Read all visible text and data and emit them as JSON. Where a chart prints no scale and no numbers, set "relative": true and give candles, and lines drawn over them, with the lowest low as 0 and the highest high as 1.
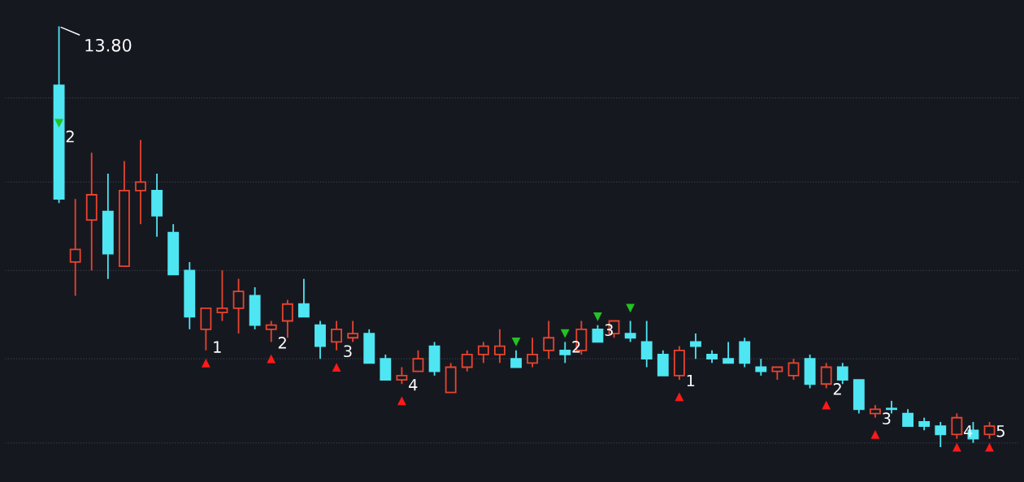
{
  "chart_data": {
    "type": "candlestick",
    "relative": true,
    "marker": "triangle",
    "categories": [
      null,
      null,
      null,
      null,
      null,
      null,
      null,
      null,
      null,
      null,
      null,
      null,
      null,
      null,
      null,
      null,
      null,
      null,
      null,
      null,
      null,
      null,
      null,
      null,
      null,
      null,
      null,
      null,
      null,
      null,
      null,
      null,
      null,
      null,
      null,
      null,
      null,
      null,
      null,
      null,
      null,
      null,
      null,
      null,
      null,
      null,
      null,
      null,
      null,
      null,
      null,
      null,
      null,
      null,
      null,
      null,
      null,
      null
    ],
    "ohlc": [
      [
        0.86,
        1.0,
        0.58,
        0.59
      ],
      [
        0.44,
        0.59,
        0.36,
        0.47
      ],
      [
        0.54,
        0.7,
        0.42,
        0.6
      ],
      [
        0.56,
        0.65,
        0.4,
        0.46
      ],
      [
        0.43,
        0.68,
        0.43,
        0.61
      ],
      [
        0.61,
        0.73,
        0.53,
        0.63
      ],
      [
        0.61,
        0.65,
        0.5,
        0.55
      ],
      [
        0.51,
        0.53,
        0.41,
        0.41
      ],
      [
        0.42,
        0.44,
        0.28,
        0.31
      ],
      [
        0.28,
        0.33,
        0.23,
        0.33
      ],
      [
        0.32,
        0.42,
        0.3,
        0.33
      ],
      [
        0.33,
        0.4,
        0.27,
        0.37
      ],
      [
        0.36,
        0.38,
        0.28,
        0.29
      ],
      [
        0.28,
        0.3,
        0.25,
        0.29
      ],
      [
        0.3,
        0.35,
        0.26,
        0.34
      ],
      [
        0.34,
        0.4,
        0.31,
        0.31
      ],
      [
        0.29,
        0.3,
        0.21,
        0.24
      ],
      [
        0.25,
        0.3,
        0.23,
        0.28
      ],
      [
        0.26,
        0.3,
        0.25,
        0.27
      ],
      [
        0.27,
        0.28,
        0.2,
        0.2
      ],
      [
        0.21,
        0.22,
        0.16,
        0.16
      ],
      [
        0.16,
        0.19,
        0.15,
        0.17
      ],
      [
        0.18,
        0.23,
        0.18,
        0.21
      ],
      [
        0.24,
        0.25,
        0.17,
        0.18
      ],
      [
        0.13,
        0.2,
        0.13,
        0.19
      ],
      [
        0.19,
        0.23,
        0.18,
        0.22
      ],
      [
        0.22,
        0.25,
        0.2,
        0.24
      ],
      [
        0.22,
        0.28,
        0.2,
        0.24
      ],
      [
        0.21,
        0.23,
        0.19,
        0.19
      ],
      [
        0.2,
        0.26,
        0.19,
        0.22
      ],
      [
        0.23,
        0.3,
        0.21,
        0.26
      ],
      [
        0.23,
        0.25,
        0.2,
        0.22
      ],
      [
        0.23,
        0.3,
        0.22,
        0.28
      ],
      [
        0.28,
        0.29,
        0.25,
        0.25
      ],
      [
        0.27,
        0.3,
        0.26,
        0.3
      ],
      [
        0.27,
        0.3,
        0.25,
        0.26
      ],
      [
        0.25,
        0.3,
        0.19,
        0.21
      ],
      [
        0.22,
        0.23,
        0.17,
        0.17
      ],
      [
        0.17,
        0.24,
        0.16,
        0.23
      ],
      [
        0.25,
        0.27,
        0.21,
        0.24
      ],
      [
        0.22,
        0.23,
        0.2,
        0.21
      ],
      [
        0.21,
        0.25,
        0.2,
        0.2
      ],
      [
        0.25,
        0.26,
        0.19,
        0.2
      ],
      [
        0.19,
        0.21,
        0.17,
        0.18
      ],
      [
        0.18,
        0.19,
        0.16,
        0.19
      ],
      [
        0.17,
        0.21,
        0.16,
        0.2
      ],
      [
        0.21,
        0.22,
        0.14,
        0.15
      ],
      [
        0.15,
        0.2,
        0.14,
        0.19
      ],
      [
        0.19,
        0.2,
        0.15,
        0.16
      ],
      [
        0.16,
        0.16,
        0.08,
        0.09
      ],
      [
        0.08,
        0.1,
        0.07,
        0.09
      ],
      [
        0.09,
        0.11,
        0.08,
        0.09
      ],
      [
        0.08,
        0.09,
        0.05,
        0.05
      ],
      [
        0.06,
        0.07,
        0.04,
        0.05
      ],
      [
        0.05,
        0.06,
        0.0,
        0.03
      ],
      [
        0.03,
        0.08,
        0.02,
        0.07
      ],
      [
        0.04,
        0.06,
        0.01,
        0.02
      ],
      [
        0.03,
        0.06,
        0.02,
        0.05
      ]
    ],
    "colors": [
      "#4ee6f2",
      "#e8442e",
      "#e8442e",
      "#4ee6f2",
      "#e8442e",
      "#e8442e",
      "#4ee6f2",
      "#4ee6f2",
      "#4ee6f2",
      "#e8442e",
      "#e8442e",
      "#e8442e",
      "#4ee6f2",
      "#e8442e",
      "#e8442e",
      "#4ee6f2",
      "#4ee6f2",
      "#e8442e",
      "#e8442e",
      "#4ee6f2",
      "#4ee6f2",
      "#e8442e",
      "#e8442e",
      "#4ee6f2",
      "#e8442e",
      "#e8442e",
      "#e8442e",
      "#e8442e",
      "#4ee6f2",
      "#e8442e",
      "#e8442e",
      "#4ee6f2",
      "#e8442e",
      "#4ee6f2",
      "#e8442e",
      "#4ee6f2",
      "#4ee6f2",
      "#4ee6f2",
      "#e8442e",
      "#4ee6f2",
      "#4ee6f2",
      "#4ee6f2",
      "#4ee6f2",
      "#4ee6f2",
      "#e8442e",
      "#e8442e",
      "#4ee6f2",
      "#e8442e",
      "#4ee6f2",
      "#4ee6f2",
      "#e8442e",
      "#4ee6f2",
      "#4ee6f2",
      "#4ee6f2",
      "#4ee6f2",
      "#e8442e",
      "#4ee6f2",
      "#e8442e"
    ],
    "series": [
      {
        "type": "scatter",
        "color": "#ff1a1a",
        "values": [
          null,
          null,
          null,
          null,
          null,
          null,
          null,
          null,
          null,
          0.2,
          null,
          null,
          null,
          0.21,
          null,
          null,
          null,
          0.19,
          null,
          null,
          null,
          0.11,
          null,
          null,
          null,
          null,
          null,
          null,
          null,
          null,
          null,
          null,
          null,
          null,
          null,
          null,
          null,
          null,
          0.12,
          null,
          null,
          null,
          null,
          null,
          null,
          null,
          null,
          0.1,
          null,
          null,
          0.03,
          null,
          null,
          null,
          null,
          0.0,
          null,
          0.0
        ]
      },
      {
        "type": "scatter",
        "color": "#22c322",
        "values": [
          0.77,
          null,
          null,
          null,
          null,
          null,
          null,
          null,
          null,
          null,
          null,
          null,
          null,
          null,
          null,
          null,
          null,
          null,
          null,
          null,
          null,
          null,
          null,
          null,
          null,
          null,
          null,
          null,
          null,
          null,
          null,
          0.27,
          null,
          0.31,
          null,
          null,
          null,
          null,
          null,
          null,
          null,
          null,
          null,
          null,
          null,
          null,
          null,
          null,
          null,
          null,
          null,
          null,
          null,
          null,
          null,
          null,
          null,
          null
        ]
      },
      {
        "type": "scatter",
        "color": "#22c322",
        "values": [
          null,
          null,
          null,
          null,
          null,
          null,
          null,
          null,
          null,
          null,
          null,
          null,
          null,
          null,
          null,
          null,
          null,
          null,
          null,
          null,
          null,
          null,
          null,
          null,
          null,
          null,
          null,
          null,
          0.25,
          null,
          null,
          null,
          null,
          null,
          null,
          0.33,
          null,
          null,
          null,
          null,
          null,
          null,
          null,
          null,
          null,
          null,
          null,
          null,
          null,
          null,
          null,
          null,
          null,
          null,
          null,
          null,
          null,
          null
        ]
      }
    ],
    "ref_lines": [
      {
        "axis": "y",
        "value": 0.83,
        "color": "#3a3d47",
        "line_style": "dotted"
      },
      {
        "axis": "y",
        "value": 0.63,
        "color": "#3a3d47",
        "line_style": "dotted"
      },
      {
        "axis": "y",
        "value": 0.42,
        "color": "#3a3d47",
        "line_style": "dotted"
      },
      {
        "axis": "y",
        "value": 0.21,
        "color": "#3a3d47",
        "line_style": "dotted"
      },
      {
        "axis": "y",
        "value": 0.01,
        "color": "#3a3d47",
        "line_style": "dotted"
      }
    ],
    "annotations": [
      "13.80",
      "1",
      "2",
      "3",
      "4",
      "1",
      "2",
      "3",
      "4",
      "5",
      "2",
      "2",
      "3"
    ]
  }
}
